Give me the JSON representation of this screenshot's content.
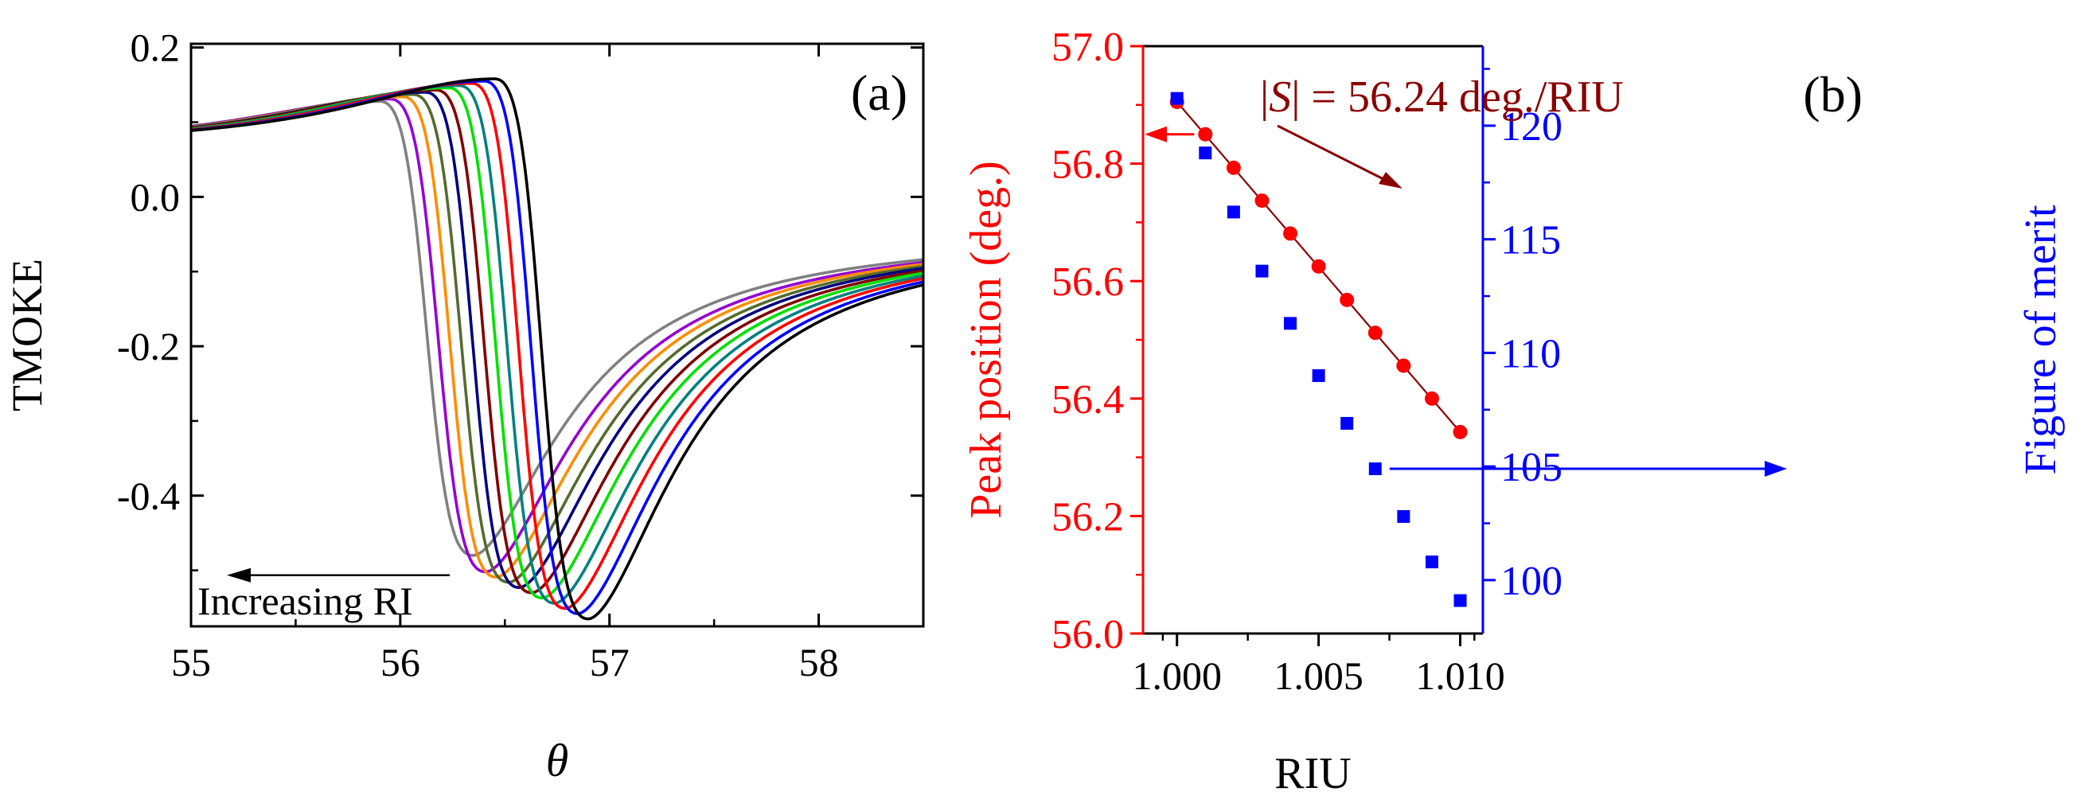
{
  "chart_data": [
    {
      "type": "line",
      "panel_label": "(a)",
      "xlabel": "θ",
      "ylabel": "TMOKE",
      "xlim": [
        55,
        58.5
      ],
      "ylim": [
        -0.575,
        0.205
      ],
      "xticks": [
        55,
        56,
        57,
        58
      ],
      "xtick_labels": [
        "55",
        "56",
        "57",
        "58"
      ],
      "yticks": [
        0.2,
        0.0,
        -0.2,
        -0.4
      ],
      "ytick_labels": [
        "0.2",
        "0.0",
        "-0.2",
        "-0.4"
      ],
      "annotation": "Increasing RI",
      "series_model": {
        "description": "Fano-like TMOKE resonances; each successive curve shifted to lower angle with increasing refractive index",
        "x_peak": [
          56.45,
          56.4,
          56.34,
          56.28,
          56.23,
          56.17,
          56.12,
          56.06,
          56.01,
          55.95,
          55.9
        ],
        "y_peak": [
          0.158,
          0.155,
          0.152,
          0.149,
          0.146,
          0.143,
          0.14,
          0.137,
          0.134,
          0.131,
          0.128
        ],
        "x_dip": [
          56.9,
          56.85,
          56.79,
          56.74,
          56.68,
          56.63,
          56.57,
          56.52,
          56.46,
          56.41,
          56.35
        ],
        "y_dip": [
          -0.565,
          -0.558,
          -0.551,
          -0.544,
          -0.537,
          -0.53,
          -0.523,
          -0.516,
          -0.509,
          -0.502,
          -0.48
        ],
        "colors": [
          "#000000",
          "#0000ff",
          "#ff0000",
          "#008080",
          "#00e000",
          "#800000",
          "#000080",
          "#556b2f",
          "#ff8c00",
          "#9400d3",
          "#808080"
        ]
      }
    },
    {
      "type": "scatter",
      "panel_label": "(b)",
      "xlabel": "RIU",
      "ylabel_left": "Peak position (deg.)",
      "ylabel_right": "Figure of merit",
      "xlim": [
        0.9988,
        1.0108
      ],
      "ylim_left": [
        56.0,
        57.0
      ],
      "ylim_right": [
        97.65,
        123.5
      ],
      "xticks": [
        1.0,
        1.005,
        1.01
      ],
      "xtick_labels": [
        "1.000",
        "1.005",
        "1.010"
      ],
      "yticks_left": [
        56.0,
        56.2,
        56.4,
        56.6,
        56.8,
        57.0
      ],
      "ytick_labels_left": [
        "56.0",
        "56.2",
        "56.4",
        "56.6",
        "56.8",
        "57.0"
      ],
      "yticks_right": [
        100,
        105,
        110,
        115,
        120
      ],
      "ytick_labels_right": [
        "100",
        "105",
        "110",
        "115",
        "120"
      ],
      "annotation_parts": [
        "|",
        "S",
        "| = 56.24 deg./RIU"
      ],
      "series": [
        {
          "name": "Peak position",
          "axis": "left",
          "color": "#ff0000",
          "marker": "circle",
          "x": [
            1.0,
            1.001,
            1.002,
            1.003,
            1.004,
            1.005,
            1.006,
            1.007,
            1.008,
            1.009,
            1.01
          ],
          "y": [
            56.905,
            56.85,
            56.793,
            56.737,
            56.681,
            56.625,
            56.568,
            56.512,
            56.456,
            56.4,
            56.343
          ]
        },
        {
          "name": "Linear fit",
          "axis": "left",
          "color": "#8b0000",
          "marker": "line",
          "x": [
            1.0,
            1.01
          ],
          "y": [
            56.905,
            56.343
          ]
        },
        {
          "name": "Figure of merit",
          "axis": "right",
          "color": "#0000ff",
          "marker": "square",
          "x": [
            1.0,
            1.001,
            1.002,
            1.003,
            1.004,
            1.005,
            1.006,
            1.007,
            1.008,
            1.009,
            1.01
          ],
          "y": [
            121.2,
            118.8,
            116.2,
            113.6,
            111.3,
            109.0,
            106.9,
            104.9,
            102.8,
            100.8,
            99.1
          ]
        }
      ]
    }
  ]
}
